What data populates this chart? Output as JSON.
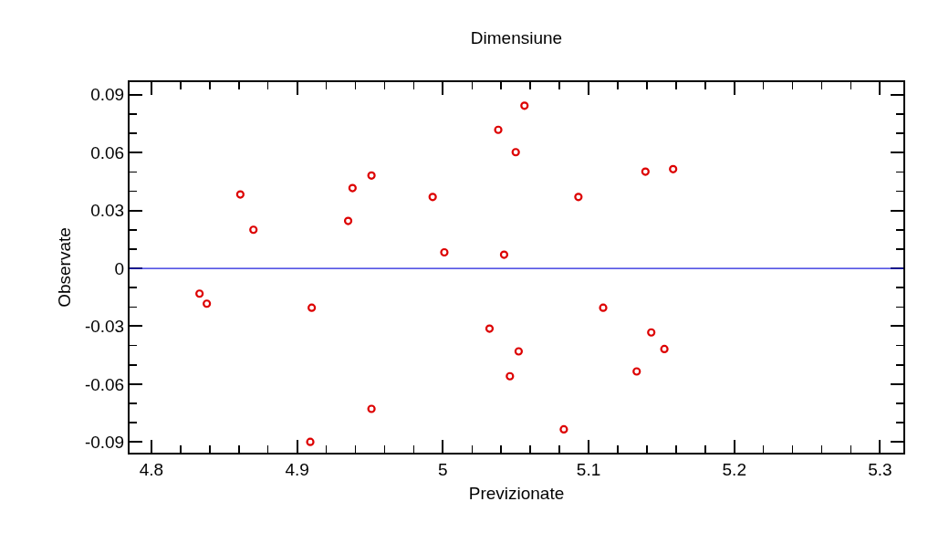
{
  "chart_data": {
    "type": "scatter",
    "title": "Dimensiune",
    "xlabel": "Previzionate",
    "ylabel": "Observate",
    "x": [
      4.833,
      4.838,
      4.861,
      4.87,
      4.91,
      4.909,
      4.935,
      4.938,
      4.951,
      4.951,
      4.993,
      5.001,
      5.032,
      5.038,
      5.042,
      5.05,
      5.056,
      5.052,
      5.046,
      5.083,
      5.093,
      5.11,
      5.133,
      5.139,
      5.158,
      5.143,
      5.152
    ],
    "values": [
      -0.0131,
      -0.0183,
      0.0383,
      0.02,
      -0.0204,
      -0.0899,
      0.0246,
      0.0416,
      0.0481,
      -0.0728,
      0.037,
      0.0083,
      -0.0312,
      0.0718,
      0.0071,
      0.0602,
      0.0843,
      -0.043,
      -0.0559,
      -0.0834,
      0.037,
      -0.0204,
      -0.0534,
      0.0501,
      0.0514,
      -0.0332,
      -0.0418
    ],
    "color": "#dd0000",
    "marker": "circle",
    "xlim": [
      4.785,
      5.316
    ],
    "xticks": [
      4.8,
      4.9,
      5,
      5.1,
      5.2,
      5.3
    ],
    "ylim": [
      -0.0955,
      0.0965
    ],
    "yticks": [
      -0.09,
      -0.06,
      -0.03,
      0,
      0.03,
      0.06,
      0.09
    ],
    "ref_lines": [
      {
        "axis": "y",
        "value": 0,
        "color": "#2020dd"
      }
    ],
    "grid": false
  }
}
